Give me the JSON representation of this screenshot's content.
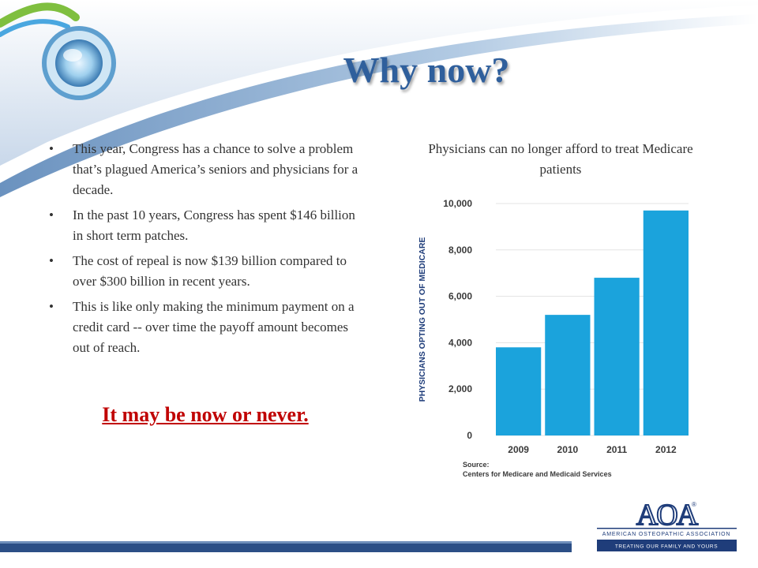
{
  "slide": {
    "title": "Why now?",
    "bullets": [
      "This year, Congress has a chance to solve a problem that’s plagued America’s seniors and physicians for a decade.",
      "In the past 10 years, Congress has spent $146 billion in short term patches.",
      "The cost of repeal is now $139 billion compared to over $300 billion in recent years.",
      "This is like only making the minimum payment on a credit card -- over time the payoff amount becomes out of reach."
    ],
    "bullet_symbol": "•",
    "callout": "It may be now or never."
  },
  "chart_heading": "Physicians can no longer afford to treat Medicare patients",
  "chart_data": {
    "type": "bar",
    "categories": [
      "2009",
      "2010",
      "2011",
      "2012"
    ],
    "values": [
      3800,
      5200,
      6800,
      9700
    ],
    "ylabel": "PHYSICIANS OPTING OUT OF MEDICARE",
    "ylim": [
      0,
      10000
    ],
    "yticks": [
      0,
      2000,
      4000,
      6000,
      8000,
      10000
    ],
    "ytick_labels": [
      "0",
      "2,000",
      "4,000",
      "6,000",
      "8,000",
      "10,000"
    ],
    "grid": true,
    "bar_color": "#1ba3dc",
    "source_label": "Source:",
    "source_text": "Centers for Medicare and Medicaid Services"
  },
  "logo": {
    "letters": "AOA",
    "registered": "®",
    "line1": "AMERICAN OSTEOPATHIC ASSOCIATION",
    "line2": "TREATING OUR FAMILY AND YOURS"
  },
  "colors": {
    "title": "#2f5f9c",
    "callout": "#c00000",
    "navy": "#1f3d7a",
    "text": "#333333"
  }
}
